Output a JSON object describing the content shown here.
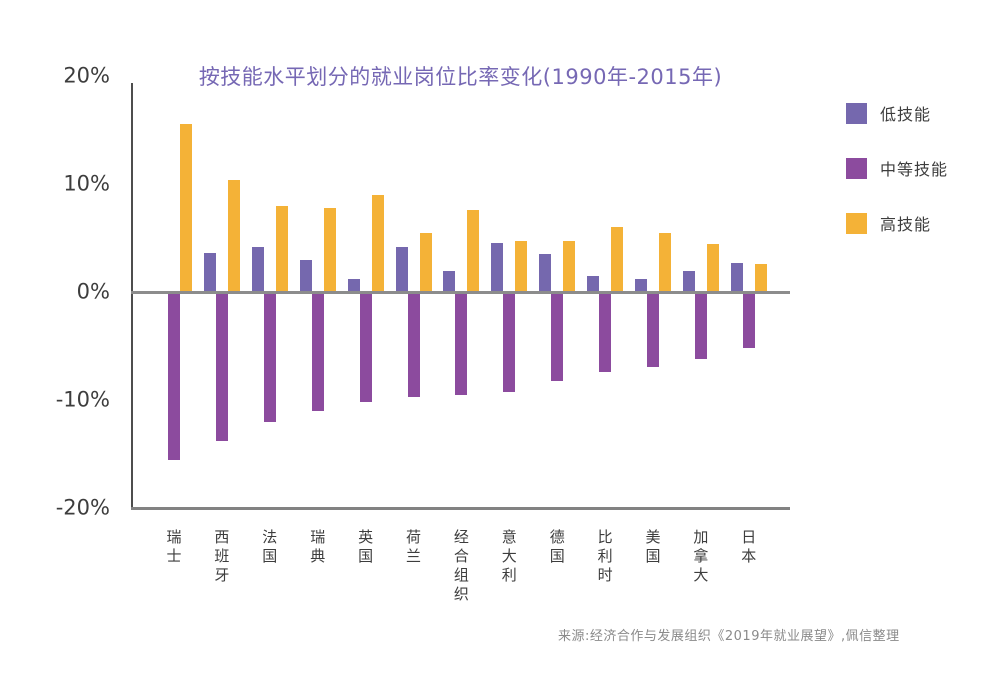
{
  "chart_data": {
    "type": "bar",
    "title": "按技能水平划分的就业岗位比率变化(1990年-2015年)",
    "categories": [
      "瑞士",
      "西班牙",
      "法国",
      "瑞典",
      "英国",
      "荷兰",
      "经合组织",
      "意大利",
      "德国",
      "比利时",
      "美国",
      "加拿大",
      "日本"
    ],
    "series": [
      {
        "name": "低技能",
        "color": "#7568AE",
        "values": [
          0,
          3.6,
          4.2,
          3.0,
          1.2,
          4.2,
          1.9,
          4.5,
          3.5,
          1.5,
          1.2,
          1.9,
          2.7
        ]
      },
      {
        "name": "中等技能",
        "color": "#8C4B9E",
        "values": [
          -15.6,
          -13.8,
          -12.0,
          -11.0,
          -10.2,
          -9.7,
          -9.5,
          -9.3,
          -8.2,
          -7.4,
          -6.9,
          -6.2,
          -5.2
        ]
      },
      {
        "name": "高技能",
        "color": "#F4B237",
        "values": [
          15.6,
          10.4,
          8.0,
          7.8,
          9.0,
          5.5,
          7.6,
          4.7,
          4.7,
          6.0,
          5.5,
          4.4,
          2.6
        ]
      }
    ],
    "y_ticks": [
      {
        "label": "20%",
        "value": 20
      },
      {
        "label": "10%",
        "value": 10
      },
      {
        "label": "0%",
        "value": 0
      },
      {
        "label": "-10%",
        "value": -10
      },
      {
        "label": "-20%",
        "value": -20
      }
    ],
    "ylim": [
      -20,
      20
    ],
    "grid": false,
    "legend_position": "right",
    "unit": "percent"
  },
  "source": {
    "text": "来源:经济合作与发展组织《2019年就业展望》,佩信整理"
  },
  "colors": {
    "title_text": "#7668B4",
    "y_axis_line": "#4D4D4D",
    "zero_line": "#8C8C8C",
    "bottom_line": "#828282",
    "tick_text": "#3D3D3D",
    "category_text": "#3D3D3D",
    "legend_text": "#3D3D3D",
    "source_text": "#8A8A8A",
    "background": "#FFFFFF"
  }
}
